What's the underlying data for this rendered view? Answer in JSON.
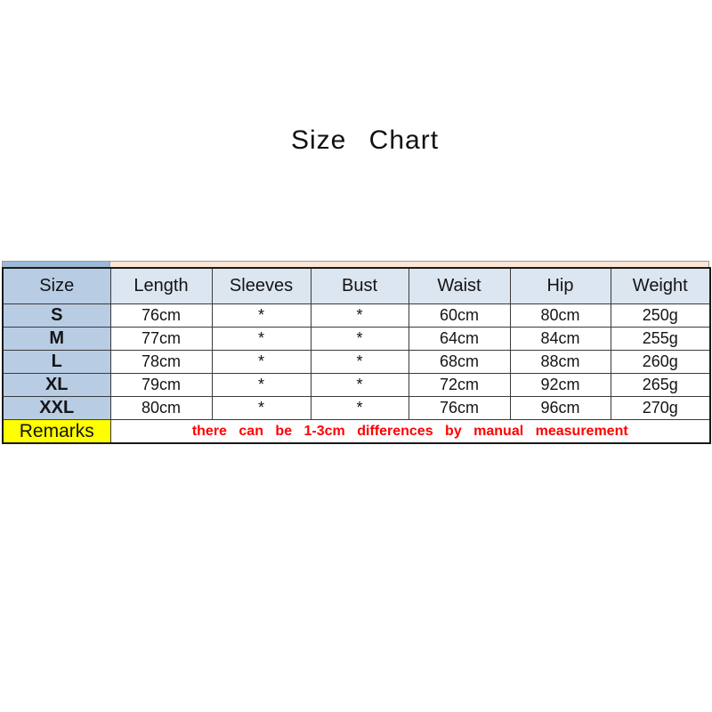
{
  "page": {
    "title": "Size Chart"
  },
  "colors": {
    "size_column_bg": "#b8cce4",
    "header_row_bg": "#dce6f1",
    "strip_left_blue": "#9cb8d8",
    "strip_right_peach": "#fbe5d6",
    "remarks_label_bg": "#ffff00",
    "remarks_text_color": "#ff0000",
    "border_color": "#1a1a1a",
    "value_cell_bg": "#ffffff"
  },
  "chart_data": {
    "type": "table",
    "title": "Size Chart",
    "columns": [
      "Size",
      "Length",
      "Sleeves",
      "Bust",
      "Waist",
      "Hip",
      "Weight"
    ],
    "rows": [
      [
        "S",
        "76cm",
        "*",
        "*",
        "60cm",
        "80cm",
        "250g"
      ],
      [
        "M",
        "77cm",
        "*",
        "*",
        "64cm",
        "84cm",
        "255g"
      ],
      [
        "L",
        "78cm",
        "*",
        "*",
        "68cm",
        "88cm",
        "260g"
      ],
      [
        "XL",
        "79cm",
        "*",
        "*",
        "72cm",
        "92cm",
        "265g"
      ],
      [
        "XXL",
        "80cm",
        "*",
        "*",
        "76cm",
        "96cm",
        "270g"
      ]
    ],
    "remarks_label": "Remarks",
    "remarks_text": "there can be 1-3cm differences by manual measurement"
  }
}
